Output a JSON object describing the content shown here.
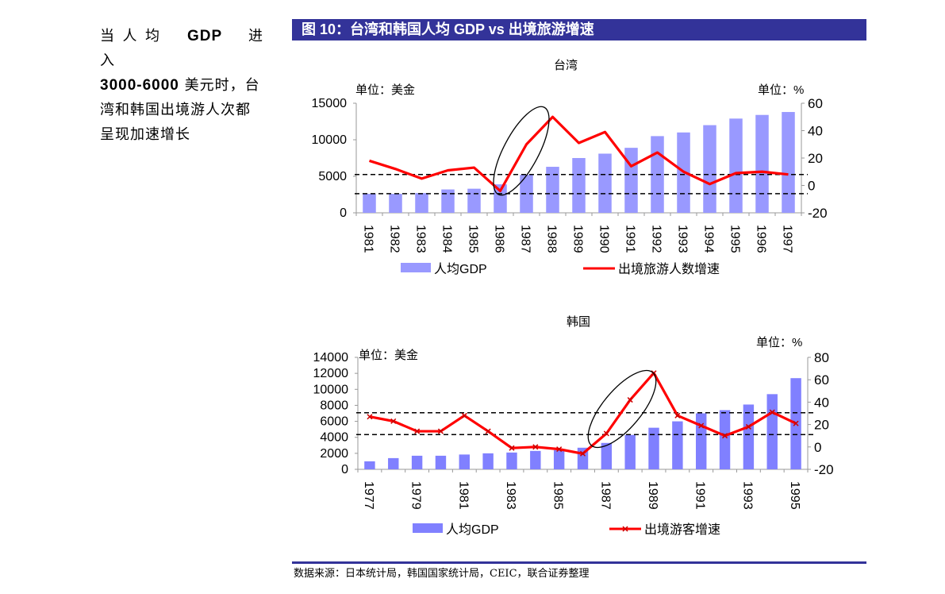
{
  "sidebar": {
    "gdp_label": "GDP",
    "line1_a": "当人均",
    "line1_b": "进入",
    "range": "3000-6000",
    "line2_rest": "美元时，台",
    "line3": "湾和韩国出境游人次都",
    "line4": "呈现加速增长"
  },
  "figure_title": "图 10：台湾和韩国人均 GDP vs 出境旅游增速",
  "source": "数据来源：日本统计局，韩国国家统计局，CEIC，联合证券整理",
  "colors": {
    "bar": "#9999ff",
    "bar_korea": "#8080ff",
    "line": "#ff0000",
    "banner": "#333399"
  },
  "chart_data": [
    {
      "type": "bar+line",
      "title": "台湾",
      "left_unit": "单位：美金",
      "right_unit": "单位：%",
      "categories": [
        "1981",
        "1982",
        "1983",
        "1984",
        "1985",
        "1986",
        "1987",
        "1988",
        "1989",
        "1990",
        "1991",
        "1992",
        "1993",
        "1994",
        "1995",
        "1996",
        "1997"
      ],
      "x_tick_labels": [
        "1981",
        "1982",
        "1983",
        "1984",
        "1985",
        "1986",
        "1987",
        "1988",
        "1989",
        "1990",
        "1991",
        "1992",
        "1993",
        "1994",
        "1995",
        "1996",
        "1997"
      ],
      "left_axis": {
        "ylim": [
          0,
          15000
        ],
        "ticks": [
          "0",
          "5000",
          "10000",
          "15000"
        ]
      },
      "right_axis": {
        "ylim": [
          -20,
          60
        ],
        "ticks": [
          "-20",
          "0",
          "20",
          "40",
          "60"
        ]
      },
      "series": [
        {
          "name": "人均GDP",
          "kind": "bar",
          "axis": "left",
          "values": [
            2600,
            2600,
            2700,
            3200,
            3300,
            3900,
            5200,
            6300,
            7500,
            8100,
            8900,
            10500,
            11000,
            12000,
            12900,
            13400,
            13800
          ]
        },
        {
          "name": "出境旅游人数增速",
          "kind": "line",
          "axis": "right",
          "values": [
            18,
            12,
            5,
            11,
            13,
            -4,
            30,
            50,
            31,
            39,
            14,
            24,
            10,
            1,
            9,
            10,
            8
          ]
        }
      ],
      "reference_lines_right_axis": [
        8,
        -6
      ],
      "legend": "bottom",
      "annotation": "ellipse around 1986-1988"
    },
    {
      "type": "bar+line",
      "title": "韩国",
      "left_unit": "单位：美金",
      "right_unit": "单位：%",
      "categories": [
        "1977",
        "1978",
        "1979",
        "1980",
        "1981",
        "1982",
        "1983",
        "1984",
        "1985",
        "1986",
        "1987",
        "1988",
        "1989",
        "1990",
        "1991",
        "1992",
        "1993",
        "1994",
        "1995"
      ],
      "x_tick_labels": [
        "1977",
        "1979",
        "1981",
        "1983",
        "1985",
        "1987",
        "1989",
        "1991",
        "1993",
        "1995"
      ],
      "left_axis": {
        "ylim": [
          0,
          14000
        ],
        "ticks": [
          "0",
          "2000",
          "4000",
          "6000",
          "8000",
          "10000",
          "12000",
          "14000"
        ]
      },
      "right_axis": {
        "ylim": [
          -20,
          80
        ],
        "ticks": [
          "-20",
          "0",
          "20",
          "40",
          "60",
          "80"
        ]
      },
      "series": [
        {
          "name": "人均GDP",
          "kind": "bar",
          "axis": "left",
          "values": [
            1000,
            1400,
            1700,
            1700,
            1850,
            2000,
            2100,
            2300,
            2400,
            2700,
            3300,
            4300,
            5200,
            6000,
            7000,
            7400,
            8100,
            9400,
            11400
          ]
        },
        {
          "name": "出境游客增速",
          "kind": "line",
          "axis": "right",
          "values": [
            27,
            23,
            14,
            14,
            28,
            14,
            -1,
            0,
            -2,
            -6,
            12,
            42,
            66,
            28,
            19,
            10,
            18,
            31,
            21
          ]
        }
      ],
      "reference_lines_right_axis": [
        30.5,
        11
      ],
      "legend": "bottom",
      "annotation": "ellipse around 1987-1989"
    }
  ]
}
